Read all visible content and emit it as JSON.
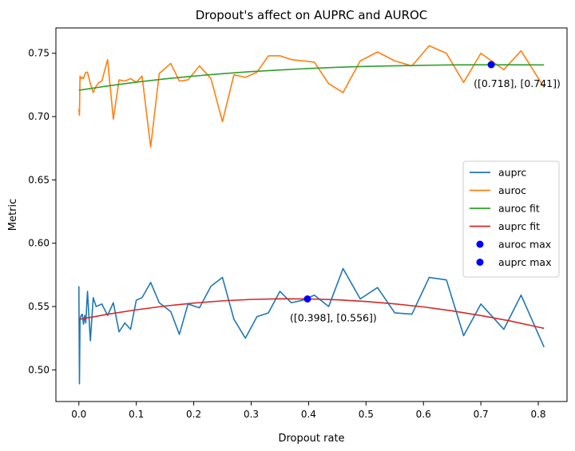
{
  "chart_data": {
    "type": "line",
    "title": "Dropout's affect on AUPRC and AUROC",
    "xlabel": "Dropout rate",
    "ylabel": "Metric",
    "xlim": [
      -0.04,
      0.85
    ],
    "ylim": [
      0.475,
      0.77
    ],
    "xticks": [
      "0.0",
      "0.1",
      "0.2",
      "0.3",
      "0.4",
      "0.5",
      "0.6",
      "0.7",
      "0.8"
    ],
    "yticks": [
      "0.50",
      "0.55",
      "0.60",
      "0.65",
      "0.70",
      "0.75"
    ],
    "grid": false,
    "legend_position": "center-right",
    "series": [
      {
        "name": "auprc",
        "color": "#1f77b4",
        "style": "line",
        "x": [
          0.0,
          0.001,
          0.002,
          0.004,
          0.006,
          0.008,
          0.01,
          0.012,
          0.015,
          0.02,
          0.025,
          0.03,
          0.035,
          0.04,
          0.05,
          0.06,
          0.07,
          0.08,
          0.09,
          0.1,
          0.11,
          0.125,
          0.14,
          0.16,
          0.175,
          0.19,
          0.21,
          0.23,
          0.25,
          0.27,
          0.29,
          0.31,
          0.33,
          0.35,
          0.37,
          0.39,
          0.41,
          0.435,
          0.46,
          0.49,
          0.52,
          0.55,
          0.58,
          0.61,
          0.64,
          0.67,
          0.7,
          0.74,
          0.77,
          0.81
        ],
        "y": [
          0.566,
          0.489,
          0.54,
          0.543,
          0.544,
          0.536,
          0.543,
          0.537,
          0.562,
          0.523,
          0.557,
          0.55,
          0.551,
          0.552,
          0.543,
          0.553,
          0.53,
          0.537,
          0.532,
          0.555,
          0.557,
          0.569,
          0.553,
          0.546,
          0.528,
          0.552,
          0.549,
          0.566,
          0.573,
          0.54,
          0.525,
          0.542,
          0.545,
          0.562,
          0.553,
          0.555,
          0.559,
          0.55,
          0.58,
          0.556,
          0.565,
          0.545,
          0.544,
          0.573,
          0.571,
          0.527,
          0.552,
          0.532,
          0.559,
          0.518
        ]
      },
      {
        "name": "auroc",
        "color": "#ff7f0e",
        "style": "line",
        "x": [
          0.0,
          0.001,
          0.002,
          0.004,
          0.006,
          0.008,
          0.01,
          0.012,
          0.015,
          0.02,
          0.025,
          0.03,
          0.035,
          0.04,
          0.05,
          0.06,
          0.07,
          0.08,
          0.09,
          0.1,
          0.11,
          0.125,
          0.14,
          0.16,
          0.175,
          0.19,
          0.21,
          0.23,
          0.25,
          0.27,
          0.29,
          0.31,
          0.33,
          0.35,
          0.37,
          0.39,
          0.41,
          0.435,
          0.46,
          0.49,
          0.52,
          0.55,
          0.58,
          0.61,
          0.64,
          0.67,
          0.7,
          0.74,
          0.77,
          0.81
        ],
        "y": [
          0.706,
          0.701,
          0.732,
          0.73,
          0.731,
          0.73,
          0.733,
          0.735,
          0.735,
          0.726,
          0.719,
          0.724,
          0.727,
          0.728,
          0.745,
          0.698,
          0.729,
          0.728,
          0.73,
          0.727,
          0.732,
          0.676,
          0.734,
          0.742,
          0.728,
          0.729,
          0.74,
          0.73,
          0.696,
          0.733,
          0.731,
          0.735,
          0.748,
          0.748,
          0.745,
          0.744,
          0.743,
          0.726,
          0.719,
          0.744,
          0.751,
          0.744,
          0.74,
          0.756,
          0.75,
          0.727,
          0.75,
          0.737,
          0.752,
          0.723
        ]
      },
      {
        "name": "auroc fit",
        "color": "#2ca02c",
        "style": "line",
        "x": [
          0.0,
          0.05,
          0.1,
          0.15,
          0.2,
          0.25,
          0.3,
          0.35,
          0.4,
          0.45,
          0.5,
          0.55,
          0.6,
          0.65,
          0.7,
          0.75,
          0.8,
          0.81
        ],
        "y": [
          0.7208,
          0.7242,
          0.7272,
          0.7298,
          0.732,
          0.7339,
          0.7355,
          0.7368,
          0.738,
          0.7389,
          0.7396,
          0.7401,
          0.7405,
          0.7408,
          0.7409,
          0.7409,
          0.7408,
          0.7408
        ]
      },
      {
        "name": "auprc fit",
        "color": "#d62728",
        "style": "line",
        "x": [
          0.0,
          0.05,
          0.1,
          0.15,
          0.2,
          0.25,
          0.3,
          0.35,
          0.4,
          0.45,
          0.5,
          0.55,
          0.6,
          0.65,
          0.7,
          0.75,
          0.8,
          0.81
        ],
        "y": [
          0.5398,
          0.5439,
          0.5474,
          0.5504,
          0.5527,
          0.5545,
          0.5556,
          0.5561,
          0.556,
          0.5553,
          0.554,
          0.5521,
          0.5497,
          0.5466,
          0.5429,
          0.5387,
          0.5338,
          0.5328
        ]
      },
      {
        "name": "auroc max",
        "color": "#0000ff",
        "style": "point",
        "x": [
          0.718
        ],
        "y": [
          0.741
        ]
      },
      {
        "name": "auprc max",
        "color": "#0000ff",
        "style": "point",
        "x": [
          0.398
        ],
        "y": [
          0.556
        ]
      }
    ],
    "annotations": [
      {
        "text": "([0.718], [0.741])",
        "x": 0.718,
        "y": 0.741
      },
      {
        "text": "([0.398], [0.556])",
        "x": 0.398,
        "y": 0.556
      }
    ]
  }
}
